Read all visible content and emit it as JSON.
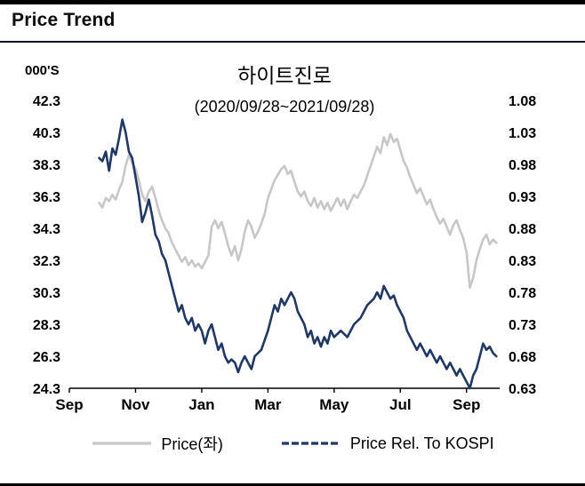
{
  "header": {
    "title": "Price Trend"
  },
  "chart_data": {
    "type": "line",
    "title": "하이트진로",
    "subtitle": "(2020/09/28~2021/09/28)",
    "left_axis_units": "000'S",
    "left_ticks": [
      "42.3",
      "40.3",
      "38.3",
      "36.3",
      "34.3",
      "32.3",
      "30.3",
      "28.3",
      "26.3",
      "24.3"
    ],
    "right_ticks": [
      "1.08",
      "1.03",
      "0.98",
      "0.93",
      "0.88",
      "0.83",
      "0.78",
      "0.73",
      "0.68",
      "0.63"
    ],
    "left_range": [
      24.3,
      42.3
    ],
    "right_range": [
      0.63,
      1.08
    ],
    "x_domain_months": [
      0,
      13
    ],
    "x_ticks": [
      {
        "label": "Sep",
        "month": 0
      },
      {
        "label": "Nov",
        "month": 2
      },
      {
        "label": "Jan",
        "month": 4
      },
      {
        "label": "Mar",
        "month": 6
      },
      {
        "label": "May",
        "month": 8
      },
      {
        "label": "Jul",
        "month": 10
      },
      {
        "label": "Sep",
        "month": 12
      }
    ],
    "grid": false,
    "legend_position": "bottom",
    "series": [
      {
        "name": "Price(좌)",
        "axis": "left",
        "color": "#c7c7c7",
        "stroke_width": 2.6,
        "points": [
          [
            0.9,
            35.9
          ],
          [
            1.0,
            35.6
          ],
          [
            1.1,
            36.2
          ],
          [
            1.2,
            36.0
          ],
          [
            1.3,
            36.4
          ],
          [
            1.4,
            36.1
          ],
          [
            1.5,
            36.7
          ],
          [
            1.6,
            37.2
          ],
          [
            1.7,
            38.2
          ],
          [
            1.8,
            38.9
          ],
          [
            1.9,
            38.4
          ],
          [
            2.0,
            38.0
          ],
          [
            2.1,
            37.3
          ],
          [
            2.2,
            36.4
          ],
          [
            2.3,
            36.0
          ],
          [
            2.4,
            36.6
          ],
          [
            2.5,
            36.9
          ],
          [
            2.6,
            36.2
          ],
          [
            2.7,
            35.4
          ],
          [
            2.8,
            34.8
          ],
          [
            2.9,
            34.3
          ],
          [
            3.0,
            34.0
          ],
          [
            3.1,
            33.4
          ],
          [
            3.2,
            33.0
          ],
          [
            3.3,
            32.6
          ],
          [
            3.4,
            32.2
          ],
          [
            3.5,
            32.5
          ],
          [
            3.6,
            32.0
          ],
          [
            3.7,
            32.3
          ],
          [
            3.8,
            31.9
          ],
          [
            3.9,
            32.1
          ],
          [
            4.0,
            31.8
          ],
          [
            4.1,
            32.2
          ],
          [
            4.2,
            32.6
          ],
          [
            4.3,
            34.4
          ],
          [
            4.4,
            34.8
          ],
          [
            4.5,
            34.3
          ],
          [
            4.6,
            34.7
          ],
          [
            4.7,
            34.0
          ],
          [
            4.8,
            33.2
          ],
          [
            4.9,
            32.6
          ],
          [
            5.0,
            33.2
          ],
          [
            5.1,
            32.3
          ],
          [
            5.2,
            33.0
          ],
          [
            5.3,
            34.1
          ],
          [
            5.4,
            34.8
          ],
          [
            5.5,
            34.4
          ],
          [
            5.6,
            33.7
          ],
          [
            5.7,
            34.1
          ],
          [
            5.8,
            34.6
          ],
          [
            5.9,
            35.2
          ],
          [
            6.0,
            36.2
          ],
          [
            6.2,
            37.3
          ],
          [
            6.4,
            38.0
          ],
          [
            6.5,
            38.2
          ],
          [
            6.6,
            37.7
          ],
          [
            6.7,
            37.9
          ],
          [
            6.8,
            37.2
          ],
          [
            6.9,
            36.6
          ],
          [
            7.0,
            36.3
          ],
          [
            7.1,
            36.6
          ],
          [
            7.2,
            36.0
          ],
          [
            7.3,
            35.7
          ],
          [
            7.4,
            36.2
          ],
          [
            7.5,
            35.6
          ],
          [
            7.6,
            36.0
          ],
          [
            7.7,
            35.5
          ],
          [
            7.8,
            35.9
          ],
          [
            7.9,
            35.4
          ],
          [
            8.0,
            35.8
          ],
          [
            8.1,
            36.2
          ],
          [
            8.2,
            35.7
          ],
          [
            8.3,
            36.1
          ],
          [
            8.4,
            35.5
          ],
          [
            8.5,
            36.0
          ],
          [
            8.6,
            36.4
          ],
          [
            8.7,
            36.2
          ],
          [
            8.8,
            36.6
          ],
          [
            8.9,
            37.0
          ],
          [
            9.0,
            37.6
          ],
          [
            9.1,
            38.2
          ],
          [
            9.2,
            38.8
          ],
          [
            9.3,
            39.4
          ],
          [
            9.4,
            39.0
          ],
          [
            9.5,
            40.0
          ],
          [
            9.6,
            39.5
          ],
          [
            9.7,
            40.2
          ],
          [
            9.8,
            39.7
          ],
          [
            9.9,
            39.9
          ],
          [
            10.0,
            39.2
          ],
          [
            10.1,
            38.5
          ],
          [
            10.2,
            38.1
          ],
          [
            10.3,
            37.5
          ],
          [
            10.4,
            37.0
          ],
          [
            10.5,
            36.5
          ],
          [
            10.6,
            36.8
          ],
          [
            10.7,
            36.3
          ],
          [
            10.8,
            35.8
          ],
          [
            10.9,
            36.1
          ],
          [
            11.0,
            35.5
          ],
          [
            11.1,
            35.0
          ],
          [
            11.2,
            34.6
          ],
          [
            11.3,
            34.9
          ],
          [
            11.4,
            34.4
          ],
          [
            11.5,
            33.9
          ],
          [
            11.6,
            34.5
          ],
          [
            11.7,
            34.8
          ],
          [
            11.8,
            34.2
          ],
          [
            11.9,
            33.7
          ],
          [
            12.0,
            32.8
          ],
          [
            12.1,
            30.6
          ],
          [
            12.2,
            31.2
          ],
          [
            12.3,
            32.3
          ],
          [
            12.4,
            33.0
          ],
          [
            12.5,
            33.6
          ],
          [
            12.6,
            33.9
          ],
          [
            12.7,
            33.3
          ],
          [
            12.8,
            33.6
          ],
          [
            12.9,
            33.4
          ]
        ]
      },
      {
        "name": "Price Rel. To KOSPI",
        "axis": "right",
        "color": "#1f3864",
        "stroke_width": 2.6,
        "points": [
          [
            0.9,
            0.99
          ],
          [
            1.0,
            0.985
          ],
          [
            1.1,
            1.0
          ],
          [
            1.2,
            0.97
          ],
          [
            1.3,
            1.005
          ],
          [
            1.4,
            0.995
          ],
          [
            1.5,
            1.02
          ],
          [
            1.6,
            1.05
          ],
          [
            1.7,
            1.03
          ],
          [
            1.8,
            1.0
          ],
          [
            1.9,
            0.99
          ],
          [
            2.0,
            0.96
          ],
          [
            2.1,
            0.93
          ],
          [
            2.2,
            0.89
          ],
          [
            2.3,
            0.905
          ],
          [
            2.4,
            0.925
          ],
          [
            2.5,
            0.9
          ],
          [
            2.6,
            0.87
          ],
          [
            2.7,
            0.86
          ],
          [
            2.8,
            0.84
          ],
          [
            2.9,
            0.83
          ],
          [
            3.0,
            0.81
          ],
          [
            3.1,
            0.79
          ],
          [
            3.2,
            0.77
          ],
          [
            3.3,
            0.75
          ],
          [
            3.4,
            0.76
          ],
          [
            3.5,
            0.74
          ],
          [
            3.6,
            0.73
          ],
          [
            3.7,
            0.74
          ],
          [
            3.8,
            0.72
          ],
          [
            3.9,
            0.73
          ],
          [
            4.0,
            0.72
          ],
          [
            4.1,
            0.7
          ],
          [
            4.2,
            0.72
          ],
          [
            4.3,
            0.73
          ],
          [
            4.4,
            0.71
          ],
          [
            4.5,
            0.69
          ],
          [
            4.6,
            0.7
          ],
          [
            4.7,
            0.68
          ],
          [
            4.8,
            0.67
          ],
          [
            4.9,
            0.675
          ],
          [
            5.0,
            0.67
          ],
          [
            5.1,
            0.655
          ],
          [
            5.2,
            0.67
          ],
          [
            5.3,
            0.68
          ],
          [
            5.4,
            0.67
          ],
          [
            5.5,
            0.66
          ],
          [
            5.6,
            0.68
          ],
          [
            5.8,
            0.69
          ],
          [
            6.0,
            0.72
          ],
          [
            6.1,
            0.74
          ],
          [
            6.2,
            0.76
          ],
          [
            6.3,
            0.75
          ],
          [
            6.4,
            0.77
          ],
          [
            6.5,
            0.76
          ],
          [
            6.6,
            0.77
          ],
          [
            6.7,
            0.78
          ],
          [
            6.8,
            0.77
          ],
          [
            6.9,
            0.75
          ],
          [
            7.0,
            0.74
          ],
          [
            7.1,
            0.73
          ],
          [
            7.2,
            0.71
          ],
          [
            7.3,
            0.72
          ],
          [
            7.4,
            0.7
          ],
          [
            7.5,
            0.71
          ],
          [
            7.6,
            0.695
          ],
          [
            7.7,
            0.71
          ],
          [
            7.8,
            0.7
          ],
          [
            7.9,
            0.72
          ],
          [
            8.0,
            0.71
          ],
          [
            8.2,
            0.72
          ],
          [
            8.4,
            0.71
          ],
          [
            8.6,
            0.73
          ],
          [
            8.8,
            0.74
          ],
          [
            9.0,
            0.76
          ],
          [
            9.2,
            0.77
          ],
          [
            9.3,
            0.78
          ],
          [
            9.4,
            0.77
          ],
          [
            9.5,
            0.79
          ],
          [
            9.6,
            0.78
          ],
          [
            9.7,
            0.77
          ],
          [
            9.8,
            0.775
          ],
          [
            9.9,
            0.76
          ],
          [
            10.0,
            0.75
          ],
          [
            10.1,
            0.74
          ],
          [
            10.2,
            0.72
          ],
          [
            10.3,
            0.71
          ],
          [
            10.4,
            0.7
          ],
          [
            10.5,
            0.69
          ],
          [
            10.6,
            0.7
          ],
          [
            10.7,
            0.69
          ],
          [
            10.8,
            0.68
          ],
          [
            10.9,
            0.69
          ],
          [
            11.0,
            0.68
          ],
          [
            11.1,
            0.67
          ],
          [
            11.2,
            0.68
          ],
          [
            11.3,
            0.67
          ],
          [
            11.4,
            0.66
          ],
          [
            11.5,
            0.67
          ],
          [
            11.6,
            0.66
          ],
          [
            11.7,
            0.65
          ],
          [
            11.8,
            0.66
          ],
          [
            11.9,
            0.65
          ],
          [
            12.0,
            0.64
          ],
          [
            12.1,
            0.63
          ],
          [
            12.2,
            0.65
          ],
          [
            12.3,
            0.66
          ],
          [
            12.4,
            0.68
          ],
          [
            12.5,
            0.7
          ],
          [
            12.6,
            0.69
          ],
          [
            12.7,
            0.695
          ],
          [
            12.8,
            0.685
          ],
          [
            12.9,
            0.68
          ]
        ]
      }
    ]
  }
}
